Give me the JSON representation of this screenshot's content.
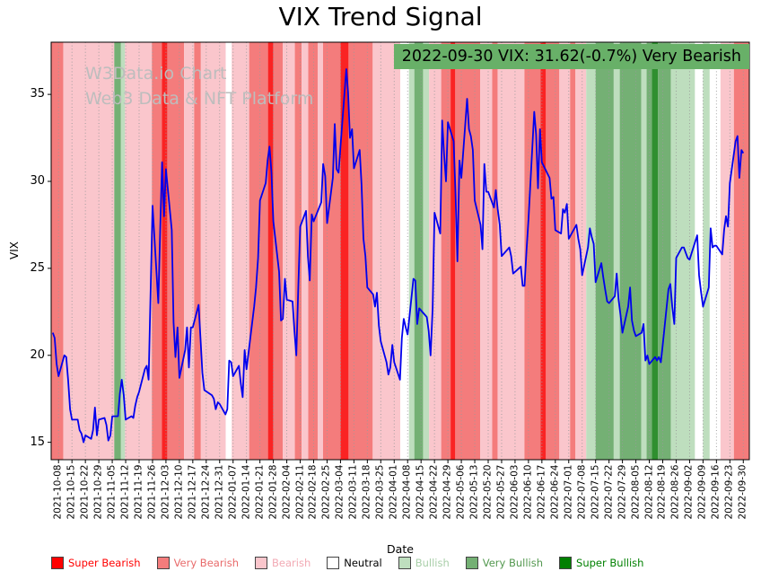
{
  "title": "VIX Trend Signal",
  "watermark": {
    "line1": "W3Data.io Chart",
    "line2": "Web3 Data & NFT Platform"
  },
  "annotation": {
    "text": "2022-09-30 VIX: 31.62(-0.7%) Very Bearish",
    "date": "2022-09-30",
    "vix_value": 31.62,
    "change_pct": -0.7,
    "signal": "Very Bearish",
    "bg": "#68b068"
  },
  "chart_data": {
    "type": "line",
    "title": "VIX Trend Signal",
    "xlabel": "Date",
    "ylabel": "VIX",
    "series_name": "VIX",
    "line_color": "#0000ee",
    "ylim": [
      14,
      38
    ],
    "xlim_weeks": [
      -0.55,
      51.45
    ],
    "y_ticks": [
      15,
      20,
      25,
      30,
      35
    ],
    "grid": "vertical-dotted",
    "legend_position": "bottom",
    "x_ticks": [
      "2021-10-08",
      "2021-10-15",
      "2021-10-22",
      "2021-10-29",
      "2021-11-05",
      "2021-11-12",
      "2021-11-19",
      "2021-11-26",
      "2021-12-03",
      "2021-12-10",
      "2021-12-17",
      "2021-12-24",
      "2021-12-31",
      "2022-01-07",
      "2022-01-14",
      "2022-01-21",
      "2022-01-28",
      "2022-02-04",
      "2022-02-11",
      "2022-02-18",
      "2022-02-25",
      "2022-03-04",
      "2022-03-11",
      "2022-03-18",
      "2022-03-25",
      "2022-04-01",
      "2022-04-08",
      "2022-04-15",
      "2022-04-22",
      "2022-04-29",
      "2022-05-06",
      "2022-05-13",
      "2022-05-20",
      "2022-05-27",
      "2022-06-03",
      "2022-06-10",
      "2022-06-17",
      "2022-06-24",
      "2022-07-01",
      "2022-07-08",
      "2022-07-15",
      "2022-07-22",
      "2022-07-29",
      "2022-08-05",
      "2022-08-12",
      "2022-08-19",
      "2022-08-26",
      "2022-09-02",
      "2022-09-09",
      "2022-09-16",
      "2022-09-23",
      "2022-09-30"
    ],
    "points": [
      [
        -0.43,
        21.3
      ],
      [
        -0.29,
        21.0
      ],
      [
        -0.14,
        19.5
      ],
      [
        0,
        18.8
      ],
      [
        0.43,
        20.0
      ],
      [
        0.57,
        19.9
      ],
      [
        0.71,
        18.6
      ],
      [
        0.86,
        16.9
      ],
      [
        1,
        16.3
      ],
      [
        1.43,
        16.3
      ],
      [
        1.57,
        15.7
      ],
      [
        1.71,
        15.5
      ],
      [
        1.86,
        15.0
      ],
      [
        2,
        15.4
      ],
      [
        2.43,
        15.2
      ],
      [
        2.57,
        15.7
      ],
      [
        2.71,
        17.0
      ],
      [
        2.86,
        15.4
      ],
      [
        3,
        16.3
      ],
      [
        3.43,
        16.4
      ],
      [
        3.57,
        16.0
      ],
      [
        3.71,
        15.1
      ],
      [
        3.86,
        15.4
      ],
      [
        4,
        16.5
      ],
      [
        4.43,
        16.5
      ],
      [
        4.57,
        17.8
      ],
      [
        4.71,
        18.6
      ],
      [
        4.86,
        17.7
      ],
      [
        5,
        16.3
      ],
      [
        5.43,
        16.5
      ],
      [
        5.57,
        16.4
      ],
      [
        5.71,
        17.1
      ],
      [
        5.86,
        17.6
      ],
      [
        6,
        17.9
      ],
      [
        6.43,
        19.2
      ],
      [
        6.57,
        19.4
      ],
      [
        6.71,
        18.6
      ],
      [
        7,
        28.6
      ],
      [
        7.43,
        23.0
      ],
      [
        7.57,
        27.2
      ],
      [
        7.71,
        31.1
      ],
      [
        7.86,
        28.0
      ],
      [
        8,
        30.7
      ],
      [
        8.43,
        27.2
      ],
      [
        8.57,
        21.9
      ],
      [
        8.71,
        19.9
      ],
      [
        8.86,
        21.6
      ],
      [
        9,
        18.7
      ],
      [
        9.43,
        20.3
      ],
      [
        9.57,
        21.6
      ],
      [
        9.71,
        19.3
      ],
      [
        9.86,
        21.6
      ],
      [
        10,
        21.6
      ],
      [
        10.43,
        22.9
      ],
      [
        10.57,
        21.0
      ],
      [
        10.71,
        19.0
      ],
      [
        10.86,
        18.0
      ],
      [
        11.43,
        17.7
      ],
      [
        11.57,
        17.5
      ],
      [
        11.71,
        16.9
      ],
      [
        11.86,
        17.3
      ],
      [
        12,
        17.2
      ],
      [
        12.43,
        16.6
      ],
      [
        12.57,
        16.9
      ],
      [
        12.71,
        19.7
      ],
      [
        12.86,
        19.6
      ],
      [
        13,
        18.8
      ],
      [
        13.43,
        19.4
      ],
      [
        13.57,
        18.4
      ],
      [
        13.71,
        17.6
      ],
      [
        13.86,
        20.3
      ],
      [
        14,
        19.2
      ],
      [
        14.57,
        22.8
      ],
      [
        14.71,
        23.9
      ],
      [
        14.86,
        25.6
      ],
      [
        15,
        28.9
      ],
      [
        15.43,
        29.9
      ],
      [
        15.57,
        31.2
      ],
      [
        15.71,
        32.0
      ],
      [
        15.86,
        30.5
      ],
      [
        16,
        27.7
      ],
      [
        16.43,
        24.8
      ],
      [
        16.57,
        22.0
      ],
      [
        16.71,
        22.1
      ],
      [
        16.86,
        24.4
      ],
      [
        17,
        23.2
      ],
      [
        17.43,
        23.1
      ],
      [
        17.57,
        21.4
      ],
      [
        17.71,
        20.0
      ],
      [
        17.86,
        23.9
      ],
      [
        18,
        27.4
      ],
      [
        18.43,
        28.3
      ],
      [
        18.57,
        25.7
      ],
      [
        18.71,
        24.3
      ],
      [
        18.86,
        28.1
      ],
      [
        19,
        27.7
      ],
      [
        19.57,
        28.8
      ],
      [
        19.71,
        31.0
      ],
      [
        19.86,
        30.3
      ],
      [
        20,
        27.6
      ],
      [
        20.43,
        30.2
      ],
      [
        20.57,
        33.3
      ],
      [
        20.71,
        30.7
      ],
      [
        20.86,
        30.5
      ],
      [
        21,
        32.0
      ],
      [
        21.43,
        36.45
      ],
      [
        21.57,
        35.1
      ],
      [
        21.71,
        32.5
      ],
      [
        21.86,
        33.0
      ],
      [
        22,
        30.75
      ],
      [
        22.43,
        31.8
      ],
      [
        22.57,
        29.8
      ],
      [
        22.71,
        26.7
      ],
      [
        22.86,
        25.7
      ],
      [
        23,
        23.9
      ],
      [
        23.43,
        23.5
      ],
      [
        23.57,
        22.8
      ],
      [
        23.71,
        23.6
      ],
      [
        23.86,
        21.7
      ],
      [
        24,
        20.8
      ],
      [
        24.43,
        19.6
      ],
      [
        24.57,
        18.9
      ],
      [
        24.71,
        19.3
      ],
      [
        24.86,
        20.6
      ],
      [
        25,
        19.6
      ],
      [
        25.43,
        18.6
      ],
      [
        25.57,
        21.0
      ],
      [
        25.71,
        22.1
      ],
      [
        25.86,
        21.6
      ],
      [
        26,
        21.2
      ],
      [
        26.43,
        24.4
      ],
      [
        26.57,
        24.3
      ],
      [
        26.71,
        21.8
      ],
      [
        26.86,
        22.7
      ],
      [
        27.43,
        22.2
      ],
      [
        27.57,
        21.4
      ],
      [
        27.71,
        20.0
      ],
      [
        27.86,
        22.7
      ],
      [
        28,
        28.2
      ],
      [
        28.43,
        27.0
      ],
      [
        28.57,
        33.5
      ],
      [
        28.71,
        31.6
      ],
      [
        28.86,
        30.0
      ],
      [
        29,
        33.4
      ],
      [
        29.43,
        32.3
      ],
      [
        29.57,
        29.3
      ],
      [
        29.71,
        25.4
      ],
      [
        29.86,
        31.2
      ],
      [
        30,
        30.2
      ],
      [
        30.43,
        34.75
      ],
      [
        30.57,
        33.0
      ],
      [
        30.71,
        32.6
      ],
      [
        30.86,
        31.8
      ],
      [
        31,
        28.9
      ],
      [
        31.43,
        27.5
      ],
      [
        31.57,
        26.1
      ],
      [
        31.71,
        31.0
      ],
      [
        31.86,
        29.4
      ],
      [
        32,
        29.4
      ],
      [
        32.43,
        28.5
      ],
      [
        32.57,
        29.5
      ],
      [
        32.71,
        28.4
      ],
      [
        32.86,
        27.5
      ],
      [
        33,
        25.7
      ],
      [
        33.57,
        26.2
      ],
      [
        33.71,
        25.7
      ],
      [
        33.86,
        24.7
      ],
      [
        34,
        24.8
      ],
      [
        34.43,
        25.1
      ],
      [
        34.57,
        24.0
      ],
      [
        34.71,
        24.0
      ],
      [
        34.86,
        26.1
      ],
      [
        35,
        27.8
      ],
      [
        35.43,
        34.0
      ],
      [
        35.57,
        32.7
      ],
      [
        35.71,
        29.6
      ],
      [
        35.86,
        33.0
      ],
      [
        36,
        31.1
      ],
      [
        36.57,
        30.2
      ],
      [
        36.71,
        29.0
      ],
      [
        36.86,
        29.1
      ],
      [
        37,
        27.2
      ],
      [
        37.43,
        27.0
      ],
      [
        37.57,
        28.4
      ],
      [
        37.71,
        28.2
      ],
      [
        37.86,
        28.7
      ],
      [
        38,
        26.7
      ],
      [
        38.57,
        27.5
      ],
      [
        38.71,
        26.7
      ],
      [
        38.86,
        26.1
      ],
      [
        39,
        24.6
      ],
      [
        39.43,
        26.2
      ],
      [
        39.57,
        27.3
      ],
      [
        39.71,
        26.8
      ],
      [
        39.86,
        26.4
      ],
      [
        40,
        24.2
      ],
      [
        40.43,
        25.3
      ],
      [
        40.57,
        24.5
      ],
      [
        40.71,
        23.8
      ],
      [
        40.86,
        23.1
      ],
      [
        41,
        23.0
      ],
      [
        41.43,
        23.4
      ],
      [
        41.57,
        24.7
      ],
      [
        41.71,
        23.2
      ],
      [
        41.86,
        22.3
      ],
      [
        42,
        21.3
      ],
      [
        42.43,
        22.8
      ],
      [
        42.57,
        23.9
      ],
      [
        42.71,
        22.0
      ],
      [
        42.86,
        21.4
      ],
      [
        43,
        21.1
      ],
      [
        43.43,
        21.3
      ],
      [
        43.57,
        21.8
      ],
      [
        43.71,
        19.7
      ],
      [
        43.86,
        20.0
      ],
      [
        44,
        19.5
      ],
      [
        44.43,
        19.9
      ],
      [
        44.57,
        19.7
      ],
      [
        44.71,
        19.9
      ],
      [
        44.86,
        19.6
      ],
      [
        45,
        20.6
      ],
      [
        45.43,
        23.8
      ],
      [
        45.57,
        24.1
      ],
      [
        45.71,
        22.8
      ],
      [
        45.86,
        21.8
      ],
      [
        46,
        25.6
      ],
      [
        46.43,
        26.2
      ],
      [
        46.57,
        26.2
      ],
      [
        46.71,
        25.9
      ],
      [
        46.86,
        25.6
      ],
      [
        47,
        25.5
      ],
      [
        47.57,
        26.9
      ],
      [
        47.71,
        24.6
      ],
      [
        47.86,
        23.6
      ],
      [
        48,
        22.8
      ],
      [
        48.43,
        23.9
      ],
      [
        48.57,
        27.3
      ],
      [
        48.71,
        26.2
      ],
      [
        48.86,
        26.3
      ],
      [
        49,
        26.3
      ],
      [
        49.43,
        25.8
      ],
      [
        49.57,
        27.2
      ],
      [
        49.71,
        28.0
      ],
      [
        49.86,
        27.4
      ],
      [
        50,
        29.9
      ],
      [
        50.43,
        32.3
      ],
      [
        50.57,
        32.6
      ],
      [
        50.71,
        30.2
      ],
      [
        50.86,
        31.8
      ],
      [
        51,
        31.62
      ]
    ],
    "signal_colors": {
      "super_bearish": "#fa2323",
      "very_bearish": "#f47c7c",
      "bearish": "#fac6cc",
      "neutral": "#ffffff",
      "bullish": "#bedebe",
      "very_bullish": "#74b074",
      "super_bullish": "#2f8f2f"
    },
    "bands": [
      {
        "start": -0.55,
        "end": 0.35,
        "signal": "very_bearish"
      },
      {
        "start": 0.35,
        "end": 4.15,
        "signal": "bearish"
      },
      {
        "start": 4.15,
        "end": 4.65,
        "signal": "very_bullish"
      },
      {
        "start": 4.65,
        "end": 4.95,
        "signal": "bullish"
      },
      {
        "start": 4.95,
        "end": 6.95,
        "signal": "bearish"
      },
      {
        "start": 6.95,
        "end": 7.7,
        "signal": "very_bearish"
      },
      {
        "start": 7.7,
        "end": 8.1,
        "signal": "super_bearish"
      },
      {
        "start": 8.1,
        "end": 9.35,
        "signal": "very_bearish"
      },
      {
        "start": 9.35,
        "end": 10.1,
        "signal": "bearish"
      },
      {
        "start": 10.1,
        "end": 10.6,
        "signal": "very_bearish"
      },
      {
        "start": 10.6,
        "end": 12.45,
        "signal": "bearish"
      },
      {
        "start": 12.45,
        "end": 12.9,
        "signal": "neutral"
      },
      {
        "start": 12.9,
        "end": 14.2,
        "signal": "bearish"
      },
      {
        "start": 14.2,
        "end": 15.6,
        "signal": "very_bearish"
      },
      {
        "start": 15.6,
        "end": 16.0,
        "signal": "super_bearish"
      },
      {
        "start": 16.0,
        "end": 16.7,
        "signal": "very_bearish"
      },
      {
        "start": 16.7,
        "end": 17.6,
        "signal": "bearish"
      },
      {
        "start": 17.6,
        "end": 18.1,
        "signal": "very_bearish"
      },
      {
        "start": 18.1,
        "end": 18.6,
        "signal": "bearish"
      },
      {
        "start": 18.6,
        "end": 19.3,
        "signal": "very_bearish"
      },
      {
        "start": 19.3,
        "end": 19.7,
        "signal": "bearish"
      },
      {
        "start": 19.7,
        "end": 21.0,
        "signal": "very_bearish"
      },
      {
        "start": 21.0,
        "end": 21.6,
        "signal": "super_bearish"
      },
      {
        "start": 21.6,
        "end": 23.4,
        "signal": "very_bearish"
      },
      {
        "start": 23.4,
        "end": 25.45,
        "signal": "bearish"
      },
      {
        "start": 25.45,
        "end": 26.1,
        "signal": "neutral"
      },
      {
        "start": 26.1,
        "end": 26.5,
        "signal": "bullish"
      },
      {
        "start": 26.5,
        "end": 27.15,
        "signal": "very_bullish"
      },
      {
        "start": 27.15,
        "end": 27.6,
        "signal": "bullish"
      },
      {
        "start": 27.6,
        "end": 28.5,
        "signal": "bearish"
      },
      {
        "start": 28.5,
        "end": 29.2,
        "signal": "very_bearish"
      },
      {
        "start": 29.2,
        "end": 29.55,
        "signal": "super_bearish"
      },
      {
        "start": 29.55,
        "end": 31.4,
        "signal": "very_bearish"
      },
      {
        "start": 31.4,
        "end": 32.3,
        "signal": "bearish"
      },
      {
        "start": 32.3,
        "end": 32.7,
        "signal": "very_bearish"
      },
      {
        "start": 32.7,
        "end": 34.7,
        "signal": "bearish"
      },
      {
        "start": 34.7,
        "end": 35.9,
        "signal": "very_bearish"
      },
      {
        "start": 35.9,
        "end": 36.3,
        "signal": "super_bearish"
      },
      {
        "start": 36.3,
        "end": 37.3,
        "signal": "very_bearish"
      },
      {
        "start": 37.3,
        "end": 38.1,
        "signal": "bearish"
      },
      {
        "start": 38.1,
        "end": 38.5,
        "signal": "very_bearish"
      },
      {
        "start": 38.5,
        "end": 39.3,
        "signal": "bearish"
      },
      {
        "start": 39.3,
        "end": 40.0,
        "signal": "bullish"
      },
      {
        "start": 40.0,
        "end": 41.35,
        "signal": "very_bullish"
      },
      {
        "start": 41.35,
        "end": 41.8,
        "signal": "bullish"
      },
      {
        "start": 41.8,
        "end": 43.4,
        "signal": "very_bullish"
      },
      {
        "start": 43.4,
        "end": 43.8,
        "signal": "bullish"
      },
      {
        "start": 43.8,
        "end": 44.2,
        "signal": "very_bullish"
      },
      {
        "start": 44.2,
        "end": 44.65,
        "signal": "super_bullish"
      },
      {
        "start": 44.65,
        "end": 45.6,
        "signal": "very_bullish"
      },
      {
        "start": 45.6,
        "end": 47.4,
        "signal": "bullish"
      },
      {
        "start": 47.4,
        "end": 48.0,
        "signal": "neutral"
      },
      {
        "start": 48.0,
        "end": 48.5,
        "signal": "bullish"
      },
      {
        "start": 48.5,
        "end": 49.3,
        "signal": "neutral"
      },
      {
        "start": 49.3,
        "end": 50.3,
        "signal": "bearish"
      },
      {
        "start": 50.3,
        "end": 51.45,
        "signal": "very_bearish"
      }
    ],
    "legend": [
      {
        "label": "Super Bearish",
        "color": "#ff0000",
        "text_color": "#ff0000"
      },
      {
        "label": "Very Bearish",
        "color": "#f47c7c",
        "text_color": "#e86a6a"
      },
      {
        "label": "Bearish",
        "color": "#fac6cc",
        "text_color": "#f2aab4"
      },
      {
        "label": "Neutral",
        "color": "#ffffff",
        "text_color": "#000000"
      },
      {
        "label": "Bullish",
        "color": "#bedebe",
        "text_color": "#a9cfa9"
      },
      {
        "label": "Very Bullish",
        "color": "#74b074",
        "text_color": "#53984f"
      },
      {
        "label": "Super Bullish",
        "color": "#008000",
        "text_color": "#008000"
      }
    ]
  }
}
